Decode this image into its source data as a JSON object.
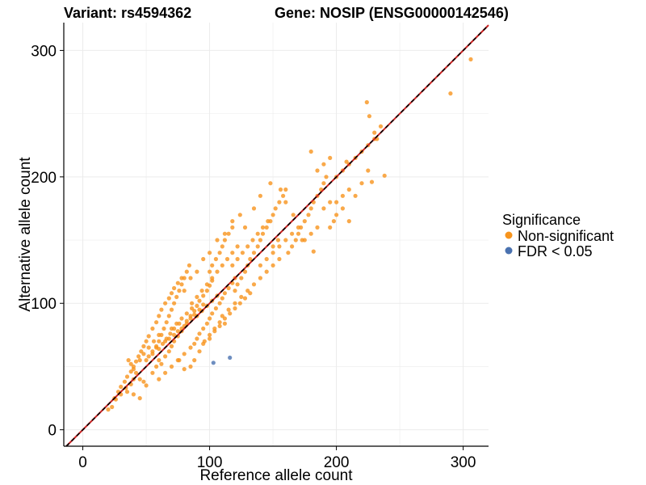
{
  "chart_data": {
    "type": "scatter",
    "title_variant": "Variant: rs4594362",
    "title_gene": "Gene: NOSIP (ENSG00000142546)",
    "xlabel": "Reference allele count",
    "ylabel": "Alternative allele count",
    "xlim": [
      -15,
      320
    ],
    "ylim": [
      -13,
      322
    ],
    "xticks": [
      0,
      100,
      200,
      300
    ],
    "yticks": [
      0,
      100,
      200,
      300
    ],
    "grid": true,
    "reference_line": {
      "slope": 1,
      "intercept": 0,
      "style": "dashed",
      "colors": [
        "#cc2222",
        "#000000"
      ]
    },
    "legend": {
      "title": "Significance",
      "placement": "right",
      "entries": [
        {
          "label": "Non-significant",
          "color": "#f7941d"
        },
        {
          "label": "FDR < 0.05",
          "color": "#4a72b0"
        }
      ]
    },
    "series": [
      {
        "name": "Non-significant",
        "color": "#f7941d",
        "points": [
          [
            20,
            16
          ],
          [
            23,
            18
          ],
          [
            25,
            25
          ],
          [
            28,
            30
          ],
          [
            30,
            34
          ],
          [
            33,
            38
          ],
          [
            35,
            42
          ],
          [
            38,
            46
          ],
          [
            40,
            50
          ],
          [
            42,
            54
          ],
          [
            44,
            58
          ],
          [
            46,
            62
          ],
          [
            48,
            66
          ],
          [
            50,
            70
          ],
          [
            52,
            74
          ],
          [
            55,
            60
          ],
          [
            58,
            65
          ],
          [
            60,
            70
          ],
          [
            62,
            75
          ],
          [
            64,
            80
          ],
          [
            66,
            85
          ],
          [
            68,
            90
          ],
          [
            70,
            95
          ],
          [
            72,
            100
          ],
          [
            74,
            105
          ],
          [
            76,
            110
          ],
          [
            78,
            115
          ],
          [
            80,
            120
          ],
          [
            82,
            125
          ],
          [
            84,
            130
          ],
          [
            36,
            55
          ],
          [
            38,
            52
          ],
          [
            40,
            48
          ],
          [
            42,
            45
          ],
          [
            45,
            40
          ],
          [
            48,
            38
          ],
          [
            50,
            35
          ],
          [
            35,
            30
          ],
          [
            40,
            28
          ],
          [
            45,
            25
          ],
          [
            55,
            45
          ],
          [
            58,
            50
          ],
          [
            60,
            55
          ],
          [
            62,
            52
          ],
          [
            65,
            58
          ],
          [
            68,
            62
          ],
          [
            70,
            66
          ],
          [
            72,
            70
          ],
          [
            75,
            74
          ],
          [
            78,
            78
          ],
          [
            80,
            82
          ],
          [
            82,
            86
          ],
          [
            85,
            90
          ],
          [
            88,
            94
          ],
          [
            90,
            98
          ],
          [
            92,
            102
          ],
          [
            95,
            106
          ],
          [
            98,
            110
          ],
          [
            100,
            114
          ],
          [
            102,
            118
          ],
          [
            55,
            80
          ],
          [
            58,
            85
          ],
          [
            60,
            90
          ],
          [
            62,
            95
          ],
          [
            65,
            100
          ],
          [
            68,
            104
          ],
          [
            70,
            108
          ],
          [
            72,
            112
          ],
          [
            75,
            116
          ],
          [
            78,
            120
          ],
          [
            60,
            40
          ],
          [
            65,
            45
          ],
          [
            70,
            50
          ],
          [
            75,
            55
          ],
          [
            80,
            60
          ],
          [
            85,
            65
          ],
          [
            88,
            68
          ],
          [
            90,
            72
          ],
          [
            92,
            76
          ],
          [
            95,
            80
          ],
          [
            98,
            84
          ],
          [
            100,
            88
          ],
          [
            102,
            92
          ],
          [
            105,
            96
          ],
          [
            108,
            100
          ],
          [
            110,
            104
          ],
          [
            112,
            108
          ],
          [
            115,
            112
          ],
          [
            118,
            116
          ],
          [
            120,
            120
          ],
          [
            100,
            125
          ],
          [
            102,
            130
          ],
          [
            105,
            135
          ],
          [
            108,
            140
          ],
          [
            110,
            145
          ],
          [
            112,
            150
          ],
          [
            115,
            155
          ],
          [
            118,
            160
          ],
          [
            120,
            110
          ],
          [
            122,
            115
          ],
          [
            125,
            120
          ],
          [
            128,
            125
          ],
          [
            130,
            130
          ],
          [
            132,
            135
          ],
          [
            135,
            140
          ],
          [
            138,
            145
          ],
          [
            140,
            150
          ],
          [
            142,
            155
          ],
          [
            145,
            160
          ],
          [
            148,
            165
          ],
          [
            150,
            170
          ],
          [
            152,
            175
          ],
          [
            155,
            180
          ],
          [
            158,
            185
          ],
          [
            160,
            190
          ],
          [
            162,
            140
          ],
          [
            165,
            145
          ],
          [
            168,
            150
          ],
          [
            170,
            155
          ],
          [
            172,
            160
          ],
          [
            175,
            165
          ],
          [
            178,
            170
          ],
          [
            180,
            175
          ],
          [
            182,
            180
          ],
          [
            185,
            185
          ],
          [
            188,
            190
          ],
          [
            190,
            195
          ],
          [
            192,
            200
          ],
          [
            195,
            160
          ],
          [
            198,
            165
          ],
          [
            110,
            90
          ],
          [
            115,
            95
          ],
          [
            120,
            100
          ],
          [
            125,
            105
          ],
          [
            130,
            110
          ],
          [
            135,
            115
          ],
          [
            140,
            120
          ],
          [
            145,
            125
          ],
          [
            150,
            130
          ],
          [
            155,
            135
          ],
          [
            118,
            130
          ],
          [
            122,
            135
          ],
          [
            126,
            140
          ],
          [
            130,
            145
          ],
          [
            134,
            150
          ],
          [
            138,
            155
          ],
          [
            142,
            160
          ],
          [
            146,
            165
          ],
          [
            150,
            145
          ],
          [
            154,
            150
          ],
          [
            96,
            70
          ],
          [
            100,
            75
          ],
          [
            104,
            80
          ],
          [
            108,
            85
          ],
          [
            112,
            88
          ],
          [
            116,
            92
          ],
          [
            120,
            96
          ],
          [
            124,
            100
          ],
          [
            128,
            104
          ],
          [
            132,
            108
          ],
          [
            86,
            100
          ],
          [
            90,
            105
          ],
          [
            94,
            110
          ],
          [
            98,
            115
          ],
          [
            102,
            120
          ],
          [
            106,
            125
          ],
          [
            110,
            130
          ],
          [
            114,
            135
          ],
          [
            118,
            140
          ],
          [
            122,
            145
          ],
          [
            70,
            80
          ],
          [
            74,
            84
          ],
          [
            78,
            88
          ],
          [
            82,
            92
          ],
          [
            86,
            96
          ],
          [
            90,
            90
          ],
          [
            94,
            94
          ],
          [
            98,
            98
          ],
          [
            102,
            102
          ],
          [
            106,
            106
          ],
          [
            65,
            70
          ],
          [
            68,
            72
          ],
          [
            72,
            75
          ],
          [
            75,
            78
          ],
          [
            78,
            80
          ],
          [
            82,
            84
          ],
          [
            85,
            88
          ],
          [
            88,
            91
          ],
          [
            92,
            95
          ],
          [
            95,
            99
          ],
          [
            50,
            55
          ],
          [
            52,
            58
          ],
          [
            55,
            62
          ],
          [
            58,
            66
          ],
          [
            60,
            64
          ],
          [
            63,
            68
          ],
          [
            66,
            72
          ],
          [
            69,
            76
          ],
          [
            72,
            80
          ],
          [
            76,
            84
          ],
          [
            140,
            130
          ],
          [
            145,
            135
          ],
          [
            150,
            140
          ],
          [
            155,
            145
          ],
          [
            160,
            150
          ],
          [
            165,
            155
          ],
          [
            170,
            160
          ],
          [
            175,
            150
          ],
          [
            180,
            155
          ],
          [
            185,
            160
          ],
          [
            200,
            200
          ],
          [
            205,
            205
          ],
          [
            210,
            210
          ],
          [
            215,
            215
          ],
          [
            220,
            220
          ],
          [
            225,
            225
          ],
          [
            230,
            230
          ],
          [
            200,
            180
          ],
          [
            205,
            185
          ],
          [
            210,
            190
          ],
          [
            190,
            175
          ],
          [
            195,
            180
          ],
          [
            200,
            170
          ],
          [
            205,
            175
          ],
          [
            210,
            165
          ],
          [
            185,
            205
          ],
          [
            190,
            210
          ],
          [
            195,
            215
          ],
          [
            180,
            220
          ],
          [
            208,
            212
          ],
          [
            215,
            185
          ],
          [
            220,
            195
          ],
          [
            225,
            205
          ],
          [
            230,
            235
          ],
          [
            235,
            240
          ],
          [
            228,
            196
          ],
          [
            232,
            230
          ],
          [
            238,
            201
          ],
          [
            224,
            259
          ],
          [
            226,
            248
          ],
          [
            290,
            266
          ],
          [
            306,
            293
          ],
          [
            182,
            141
          ],
          [
            173,
            150
          ],
          [
            166,
            170
          ],
          [
            160,
            180
          ],
          [
            156,
            190
          ],
          [
            148,
            195
          ],
          [
            140,
            185
          ],
          [
            135,
            175
          ],
          [
            128,
            160
          ],
          [
            124,
            170
          ],
          [
            118,
            165
          ],
          [
            112,
            155
          ],
          [
            106,
            150
          ],
          [
            100,
            140
          ],
          [
            95,
            135
          ],
          [
            90,
            125
          ],
          [
            85,
            120
          ],
          [
            80,
            110
          ],
          [
            45,
            55
          ],
          [
            48,
            60
          ],
          [
            52,
            65
          ],
          [
            56,
            70
          ],
          [
            60,
            75
          ],
          [
            40,
            40
          ],
          [
            38,
            36
          ],
          [
            34,
            33
          ],
          [
            30,
            28
          ],
          [
            26,
            24
          ],
          [
            88,
            55
          ],
          [
            85,
            50
          ],
          [
            80,
            48
          ],
          [
            76,
            55
          ],
          [
            92,
            62
          ],
          [
            95,
            68
          ],
          [
            100,
            72
          ],
          [
            104,
            78
          ],
          [
            108,
            82
          ],
          [
            112,
            84
          ]
        ]
      },
      {
        "name": "FDR < 0.05",
        "color": "#4a72b0",
        "points": [
          [
            103,
            53
          ],
          [
            116,
            57
          ]
        ]
      }
    ]
  }
}
